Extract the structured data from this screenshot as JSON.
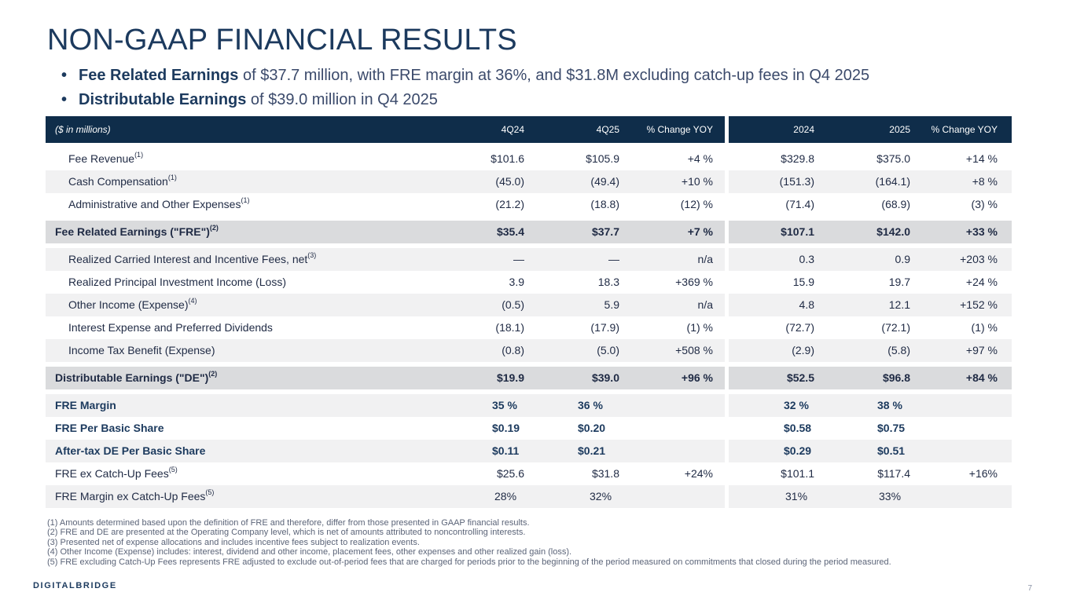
{
  "title": "NON-GAAP FINANCIAL RESULTS",
  "bullets": [
    {
      "bold": "Fee Related Earnings",
      "rest": " of $37.7 million, with FRE margin at 36%, and $31.8M excluding catch-up fees in Q4 2025"
    },
    {
      "bold": "Distributable Earnings",
      "rest": " of $39.0 million in Q4 2025"
    }
  ],
  "table": {
    "header": {
      "label": "($ in millions)",
      "c1": "4Q24",
      "c2": "4Q25",
      "c3": "% Change YOY",
      "c4": "2024",
      "c5": "2025",
      "c6": "% Change YOY"
    },
    "rows": [
      {
        "label": "Fee Revenue",
        "sup": "(1)",
        "v": [
          "$101.6",
          "$105.9",
          "+4 %",
          "$329.8",
          "$375.0",
          "+14 %"
        ]
      },
      {
        "label": "Cash Compensation",
        "sup": "(1)",
        "v": [
          "(45.0)",
          "(49.4)",
          "+10 %",
          "(151.3)",
          "(164.1)",
          "+8 %"
        ]
      },
      {
        "label": "Administrative and Other Expenses",
        "sup": "(1)",
        "v": [
          "(21.2)",
          "(18.8)",
          "(12) %",
          "(71.4)",
          "(68.9)",
          "(3) %"
        ]
      },
      {
        "label": "Fee Related Earnings (\"FRE\")",
        "sup": "(2)",
        "v": [
          "$35.4",
          "$37.7",
          "+7 %",
          "$107.1",
          "$142.0",
          "+33 %"
        ]
      },
      {
        "label": "Realized Carried Interest and Incentive Fees, net",
        "sup": "(3)",
        "v": [
          "—",
          "—",
          "n/a",
          "0.3",
          "0.9",
          "+203 %"
        ]
      },
      {
        "label": "Realized Principal Investment Income (Loss)",
        "sup": "",
        "v": [
          "3.9",
          "18.3",
          "+369 %",
          "15.9",
          "19.7",
          "+24 %"
        ]
      },
      {
        "label": "Other Income (Expense)",
        "sup": "(4)",
        "v": [
          "(0.5)",
          "5.9",
          "n/a",
          "4.8",
          "12.1",
          "+152 %"
        ]
      },
      {
        "label": "Interest Expense and Preferred Dividends",
        "sup": "",
        "v": [
          "(18.1)",
          "(17.9)",
          "(1) %",
          "(72.7)",
          "(72.1)",
          "(1) %"
        ]
      },
      {
        "label": "Income Tax Benefit (Expense)",
        "sup": "",
        "v": [
          "(0.8)",
          "(5.0)",
          "+508 %",
          "(2.9)",
          "(5.8)",
          "+97 %"
        ]
      },
      {
        "label": "Distributable Earnings (\"DE\")",
        "sup": "(2)",
        "v": [
          "$19.9",
          "$39.0",
          "+96 %",
          "$52.5",
          "$96.8",
          "+84 %"
        ]
      },
      {
        "label": "FRE Margin",
        "sup": "",
        "v": [
          "35 %",
          "36 %",
          "",
          "32 %",
          "38 %",
          ""
        ]
      },
      {
        "label": "FRE Per Basic Share",
        "sup": "",
        "v": [
          "$0.19",
          "$0.20",
          "",
          "$0.58",
          "$0.75",
          ""
        ]
      },
      {
        "label": "After-tax DE Per Basic Share",
        "sup": "",
        "v": [
          "$0.11",
          "$0.21",
          "",
          "$0.29",
          "$0.51",
          ""
        ]
      },
      {
        "label": "FRE ex Catch-Up Fees",
        "sup": "(5)",
        "v": [
          "$25.6",
          "$31.8",
          "+24%",
          "$101.1",
          "$117.4",
          "+16%"
        ]
      },
      {
        "label": "FRE Margin ex Catch-Up Fees",
        "sup": "(5)",
        "v": [
          "28%",
          "32%",
          "",
          "31%",
          "33%",
          ""
        ]
      }
    ]
  },
  "footnotes": [
    "(1) Amounts determined based upon the definition of FRE and therefore, differ from those presented in GAAP financial results.",
    "(2) FRE and DE are presented at the Operating Company level, which is net of amounts attributed to noncontrolling interests.",
    "(3) Presented net of expense allocations and includes incentive fees subject to realization events.",
    "(4) Other Income (Expense) includes: interest, dividend and other income, placement fees, other expenses and other realized gain (loss).",
    "(5) FRE excluding Catch-Up Fees represents FRE adjusted to exclude out-of-period fees that are charged for periods prior to the beginning of the period measured on commitments that closed during the period measured."
  ],
  "logo": "DIGITALBRIDGE",
  "page_number": "7"
}
